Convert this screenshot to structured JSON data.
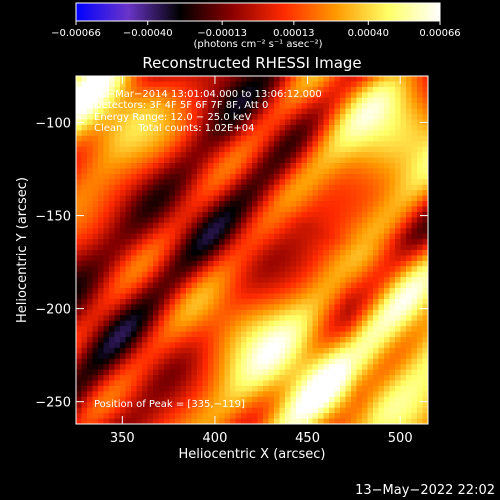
{
  "colorbar": {
    "tick_labels": [
      "-0.00066",
      "-0.00040",
      "-0.00013",
      "0.00013",
      "0.00040",
      "0.00066"
    ],
    "unit_label": "(photons cm⁻² s⁻¹ asec⁻²)",
    "colors": [
      "#0000ff",
      "#6a35c9",
      "#000000",
      "#8b0000",
      "#ff2a00",
      "#ff9900",
      "#ffff66",
      "#ffffff"
    ]
  },
  "chart_data": {
    "type": "heatmap",
    "title": "Reconstructed RHESSI Image",
    "xlabel": "Heliocentric X (arcsec)",
    "ylabel": "Heliocentric Y (arcsec)",
    "xlim": [
      325,
      515
    ],
    "ylim": [
      -262,
      -75
    ],
    "x_ticks": [
      350,
      400,
      450,
      500
    ],
    "y_ticks": [
      -100,
      -150,
      -200,
      -250
    ],
    "x_tick_labels": [
      "350",
      "400",
      "450",
      "500"
    ],
    "y_tick_labels": [
      "−100",
      "−150",
      "−200",
      "−250"
    ],
    "value_range": [
      -0.00066,
      0.00066
    ],
    "annotations": [
      "16−Mar−2014 13:01:04.000 to 13:06:12.000",
      "Detectors: 3F 4F 5F 6F 7F 8F, Att 0",
      "Energy Range: 12.0 − 25.0 keV",
      "Clean     Total counts: 1.02E+04"
    ],
    "peak_label": "Position of Peak = [335,−119]",
    "peak_position": [
      335,
      -119
    ]
  },
  "footer": {
    "date_stamp": "13−May−2022 22:02"
  }
}
